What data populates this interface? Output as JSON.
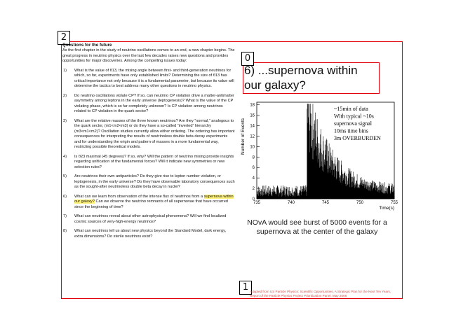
{
  "labels": {
    "box0": "0",
    "box1": "1",
    "box2": "2"
  },
  "document": {
    "title": "Questions for the future",
    "intro": "As the first chapter in the study of neutrino oscillations comes to an end, a new chapter begins. The great progress in neutrino physics over the last few decades raises new questions and provides opportunities for major discoveries. Among the compelling issues today:",
    "questions": [
      {
        "num": "1)",
        "text": "What is the value of θ13, the mixing angle between first- and third-generation neutrinos for which, so far, experiments have only established limits? Determining the size of θ13 has critical importance not only because it is a fundamental parameter, but because its value will determine the tactics to best address many other questions in neutrino physics."
      },
      {
        "num": "2)",
        "text": "Do neutrino oscillations violate CP? If so, can neutrino CP violation drive a matter-antimatter asymmetry among leptons in the early universe (leptogenesis)? What is the value of the CP violating phase, which is so far completely unknown? Is CP violation among neutrinos related to CP violation in the quark sector?"
      },
      {
        "num": "3)",
        "text": "What are the relative masses of the three known neutrinos? Are they “normal,” analogous to the quark sector, (m1<m2<m3) or do they have a so-called “inverted” hierarchy (m3<m1<m2)? Oscillation studies currently allow either ordering. The ordering has important consequences for interpreting the results of neutrinoless double beta decay experiments and for understanding the origin and pattern of masses in a more fundamental way, restricting possible theoretical models."
      },
      {
        "num": "4)",
        "text": "Is θ23 maximal (45 degrees)? If so, why? Will the pattern of neutrino mixing provide insights regarding unification of the fundamental forces? Will it indicate new symmetries or new selection rules?"
      },
      {
        "num": "5)",
        "text": "Are neutrinos their own antiparticles? Do they give rise to lepton number violation, or leptogenesis, in the early universe? Do they have observable laboratory consequences such as the sought-after neutrinoless double beta decay in nuclei?"
      },
      {
        "num": "6)",
        "text_before": "What can we learn from observation of the intense flux of neutrinos from a ",
        "highlight": "supernova within our galaxy?",
        "text_after": " Can we observe the neutrino remnants of all supernovae that have occurred since the beginning of time?"
      },
      {
        "num": "7)",
        "text": "What can neutrinos reveal about other astrophysical phenomena? Will we find localized cosmic sources of very-high-energy neutrinos?"
      },
      {
        "num": "8)",
        "text": "What can neutrinos tell us about new physics beyond the Standard Model, dark energy, extra dimensions? Do sterile neutrinos exist?"
      }
    ]
  },
  "headline": "6) ...supernova within our galaxy?",
  "chart_data": {
    "type": "histogram",
    "xlabel": "Time(s)",
    "ylabel": "Number of Events",
    "xlim": [
      735,
      755
    ],
    "ylim": [
      0,
      18.5
    ],
    "xticks": [
      735,
      740,
      745,
      750,
      755
    ],
    "yticks": [
      0,
      2,
      4,
      6,
      8,
      10,
      12,
      14,
      16,
      18
    ],
    "annotation": [
      "~15min of data",
      "With typical ~10s",
      "supernova signal",
      "10ms time bins",
      "3m OVERBURDEN"
    ],
    "background_rate": 1.5,
    "burst_start": 742.3,
    "burst_peak": 15,
    "burst_decay_s": 3.5,
    "bin_width_s": 0.01
  },
  "caption": "NOvA would see burst of 5000 events for a supernova at the center of the galaxy",
  "citation": "Adapted from US Particle Physics: Scientific Opportunities, A Strategic Plan for the Next Ten Years, Report of the Particle Physics Project Prioritization Panel, May 2008"
}
